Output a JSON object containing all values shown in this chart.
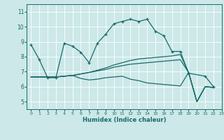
{
  "background_color": "#cce8e8",
  "grid_color": "#ffffff",
  "line_color": "#1a6b6b",
  "xlabel": "Humidex (Indice chaleur)",
  "xlim": [
    -0.5,
    23
  ],
  "ylim": [
    4.5,
    11.5
  ],
  "yticks": [
    5,
    6,
    7,
    8,
    9,
    10,
    11
  ],
  "xticks": [
    0,
    1,
    2,
    3,
    4,
    5,
    6,
    7,
    8,
    9,
    10,
    11,
    12,
    13,
    14,
    15,
    16,
    17,
    18,
    19,
    20,
    21,
    22,
    23
  ],
  "series0": {
    "x": [
      0,
      1,
      2,
      3,
      4,
      5,
      6,
      7,
      8,
      9,
      10,
      11,
      12,
      13,
      14,
      15,
      16,
      17,
      18,
      19,
      21,
      22
    ],
    "y": [
      8.8,
      7.8,
      6.6,
      6.6,
      8.9,
      8.7,
      8.3,
      7.6,
      8.9,
      9.5,
      10.2,
      10.35,
      10.5,
      10.35,
      10.5,
      9.7,
      9.4,
      8.35,
      8.35,
      6.9,
      6.7,
      6.0
    ]
  },
  "series1": {
    "x": [
      0,
      1,
      2,
      3,
      4,
      5,
      6,
      7,
      8,
      9,
      10,
      11,
      12,
      13,
      14,
      15,
      16,
      17,
      18,
      19,
      20,
      21,
      22
    ],
    "y": [
      6.65,
      6.65,
      6.65,
      6.65,
      6.7,
      6.75,
      6.55,
      6.45,
      6.5,
      6.6,
      6.65,
      6.7,
      6.5,
      6.4,
      6.25,
      6.2,
      6.15,
      6.1,
      6.05,
      6.95,
      5.0,
      6.0,
      5.95
    ]
  },
  "series2": {
    "x": [
      0,
      1,
      2,
      3,
      4,
      5,
      6,
      7,
      8,
      9,
      10,
      11,
      12,
      13,
      14,
      15,
      16,
      17,
      18,
      19,
      20,
      21,
      22
    ],
    "y": [
      6.65,
      6.65,
      6.65,
      6.65,
      6.7,
      6.75,
      6.85,
      6.95,
      7.05,
      7.15,
      7.3,
      7.4,
      7.5,
      7.55,
      7.6,
      7.65,
      7.7,
      7.75,
      7.8,
      6.95,
      5.0,
      6.0,
      5.95
    ]
  },
  "series3": {
    "x": [
      0,
      1,
      2,
      3,
      4,
      5,
      6,
      7,
      8,
      9,
      10,
      11,
      12,
      13,
      14,
      15,
      16,
      17,
      18,
      19,
      20,
      21,
      22
    ],
    "y": [
      6.65,
      6.65,
      6.65,
      6.65,
      6.7,
      6.75,
      6.85,
      6.95,
      7.1,
      7.25,
      7.45,
      7.6,
      7.75,
      7.85,
      7.9,
      7.95,
      8.0,
      8.05,
      8.15,
      6.95,
      5.0,
      6.0,
      5.95
    ]
  }
}
